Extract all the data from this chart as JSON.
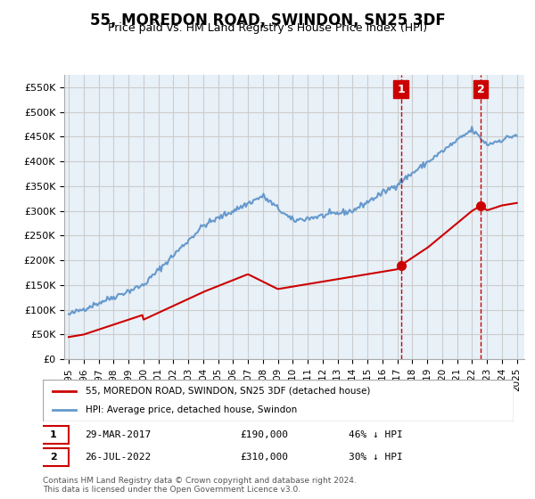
{
  "title": "55, MOREDON ROAD, SWINDON, SN25 3DF",
  "subtitle": "Price paid vs. HM Land Registry's House Price Index (HPI)",
  "title_fontsize": 13,
  "subtitle_fontsize": 10,
  "ylabel_ticks": [
    "£0",
    "£50K",
    "£100K",
    "£150K",
    "£200K",
    "£250K",
    "£300K",
    "£350K",
    "£400K",
    "£450K",
    "£500K",
    "£550K"
  ],
  "ytick_values": [
    0,
    50000,
    100000,
    150000,
    200000,
    250000,
    300000,
    350000,
    400000,
    450000,
    500000,
    550000
  ],
  "ylim": [
    0,
    575000
  ],
  "xlim_start": 1995.0,
  "xlim_end": 2025.5,
  "xtick_years": [
    1995,
    1996,
    1997,
    1998,
    1999,
    2000,
    2001,
    2002,
    2003,
    2004,
    2005,
    2006,
    2007,
    2008,
    2009,
    2010,
    2011,
    2012,
    2013,
    2014,
    2015,
    2016,
    2017,
    2018,
    2019,
    2020,
    2021,
    2022,
    2023,
    2024,
    2025
  ],
  "hpi_color": "#6699cc",
  "price_color": "#cc0000",
  "grid_color": "#cccccc",
  "bg_color": "#e8f0f8",
  "legend_border_color": "#aaaaaa",
  "annotation_box_color": "#cc0000",
  "vline_color": "#cc0000",
  "vline_style": "--",
  "sale1_year": 2017.24,
  "sale1_price": 190000,
  "sale1_label": "1",
  "sale2_year": 2022.57,
  "sale2_price": 310000,
  "sale2_label": "2",
  "footer_text": "Contains HM Land Registry data © Crown copyright and database right 2024.\nThis data is licensed under the Open Government Licence v3.0.",
  "legend_line1": "55, MOREDON ROAD, SWINDON, SN25 3DF (detached house)",
  "legend_line2": "HPI: Average price, detached house, Swindon",
  "table_row1": "1    29-MAR-2017         £190,000         46% ↓ HPI",
  "table_row2": "2    26-JUL-2022          £310,000         30% ↓ HPI"
}
